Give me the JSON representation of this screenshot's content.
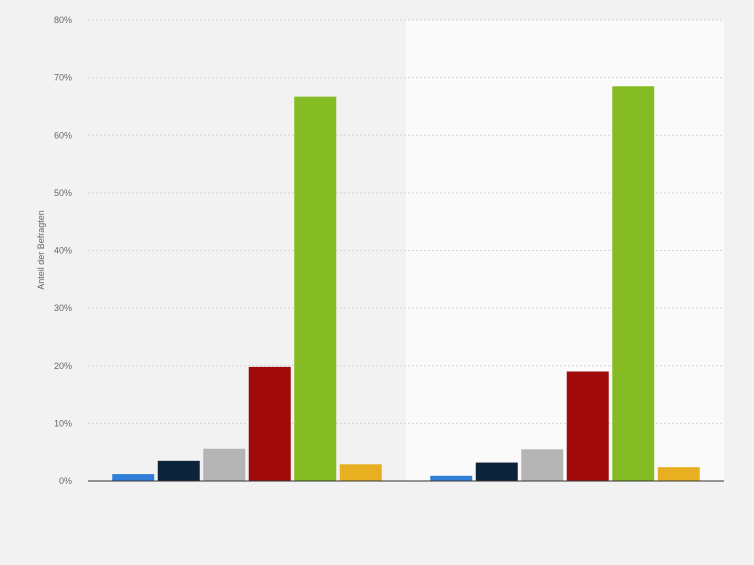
{
  "chart_data": {
    "type": "bar",
    "ylabel": "Anteil der Befragten",
    "xlabel": "",
    "ylim": [
      0,
      80
    ],
    "yticks": [
      0,
      10,
      20,
      30,
      40,
      50,
      60,
      70,
      80
    ],
    "ytick_suffix": "%",
    "grid": true,
    "legend": "none",
    "categories": [
      "",
      ""
    ],
    "series": [
      {
        "color": "#2f7ed8",
        "values": [
          1.2,
          0.9
        ]
      },
      {
        "color": "#0d233a",
        "values": [
          3.5,
          3.2
        ]
      },
      {
        "color": "#b5b5b5",
        "values": [
          5.6,
          5.5
        ]
      },
      {
        "color": "#a00a0a",
        "values": [
          19.8,
          19.0
        ]
      },
      {
        "color": "#86bc23",
        "values": [
          66.7,
          68.5
        ]
      },
      {
        "color": "#e8b020",
        "values": [
          2.9,
          2.4
        ]
      }
    ]
  }
}
